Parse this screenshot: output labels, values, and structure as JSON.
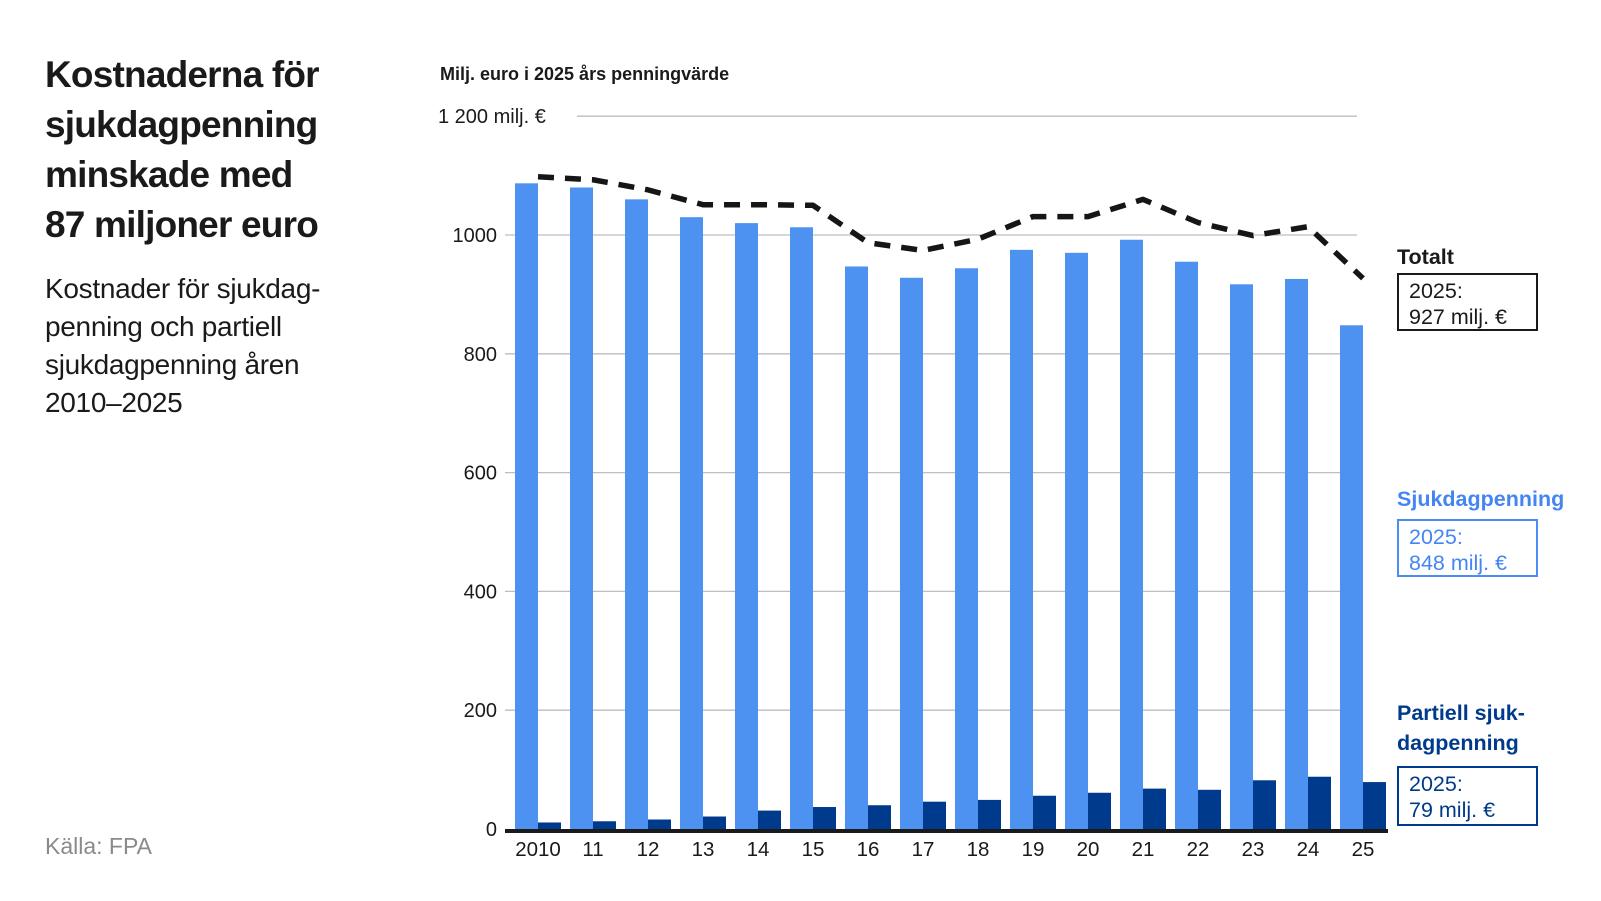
{
  "left": {
    "headline": "Kostnaderna för\nsjukdagpenning\nminskade med\n87 miljoner euro",
    "subtitle": "Kostnader för sjukdag-\npenning och partiell\nsjukdagpenning åren\n2010–2025",
    "source": "Källa: FPA"
  },
  "chart": {
    "units_label": "Milj. euro i 2025 års penningvärde"
  },
  "chart_data": {
    "type": "bar",
    "title": "Kostnaderna för sjukdagpenning minskade med 87 miljoner euro",
    "ylabel": "Milj. euro i 2025 års penningvärde",
    "categories": [
      "2010",
      "11",
      "12",
      "13",
      "14",
      "15",
      "16",
      "17",
      "18",
      "19",
      "20",
      "21",
      "22",
      "23",
      "24",
      "25"
    ],
    "series": [
      {
        "name": "Sjukdagpenning",
        "type": "bar",
        "color": "#4d92f0",
        "values": [
          1087,
          1080,
          1060,
          1030,
          1020,
          1013,
          947,
          928,
          944,
          975,
          970,
          992,
          955,
          917,
          926,
          848
        ]
      },
      {
        "name": "Partiell sjukdagpenning",
        "type": "bar",
        "color": "#003a8c",
        "values": [
          11,
          13,
          16,
          21,
          31,
          37,
          40,
          46,
          49,
          56,
          61,
          68,
          66,
          82,
          88,
          79
        ]
      },
      {
        "name": "Totalt",
        "type": "line",
        "dashed": true,
        "color": "#161616",
        "values": [
          1098,
          1093,
          1076,
          1051,
          1051,
          1050,
          987,
          974,
          993,
          1031,
          1031,
          1060,
          1021,
          999,
          1014,
          927
        ]
      }
    ],
    "ylim": [
      0,
      1200
    ],
    "yticks": [
      0,
      200,
      400,
      600,
      800,
      1000,
      1200
    ],
    "ytick_labels": [
      "0",
      "200",
      "400",
      "600",
      "800",
      "1000",
      "1 200 milj. €"
    ],
    "grid": true,
    "grid_color": "#bebebe",
    "axis_color": "#1a1a1a",
    "legend_position": "right"
  },
  "legend": {
    "totalt": {
      "label": "Totalt",
      "value_line1": "2025:",
      "value_line2": "927 milj. €"
    },
    "sjukdagpenning": {
      "label": "Sjukdagpenning",
      "value_line1": "2025:",
      "value_line2": "848 milj. €"
    },
    "partiell": {
      "label": "Partiell sjuk-\ndagpenning",
      "value_line1": "2025:",
      "value_line2": "79 milj. €"
    }
  }
}
